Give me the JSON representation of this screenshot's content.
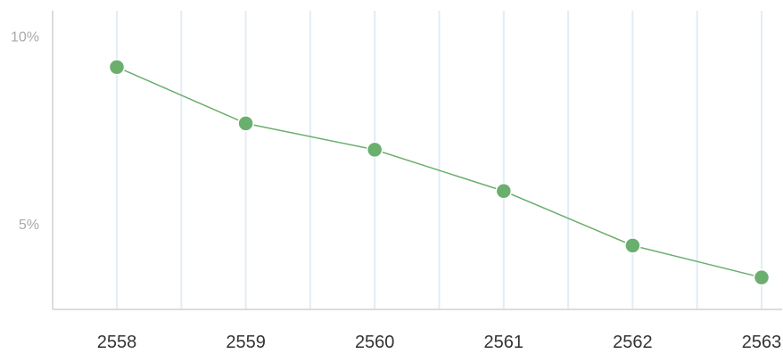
{
  "chart_data": {
    "type": "line",
    "categories": [
      "2558",
      "2559",
      "2560",
      "2561",
      "2562",
      "2563"
    ],
    "series": [
      {
        "values": [
          9.2,
          7.7,
          7.0,
          5.9,
          4.45,
          3.6
        ],
        "color": "#6aaf6e"
      }
    ],
    "y_ticks": [
      {
        "value": 5,
        "label": "5%"
      },
      {
        "value": 10,
        "label": "10%"
      }
    ],
    "ylim": [
      2.75,
      10.7
    ],
    "grid": {
      "vertical": true,
      "horizontal": false
    },
    "colors": {
      "grid": "#e3ecf4",
      "axis": "#dcdcdc",
      "line": "#6aaf6e",
      "marker": "#6aaf6e"
    }
  }
}
